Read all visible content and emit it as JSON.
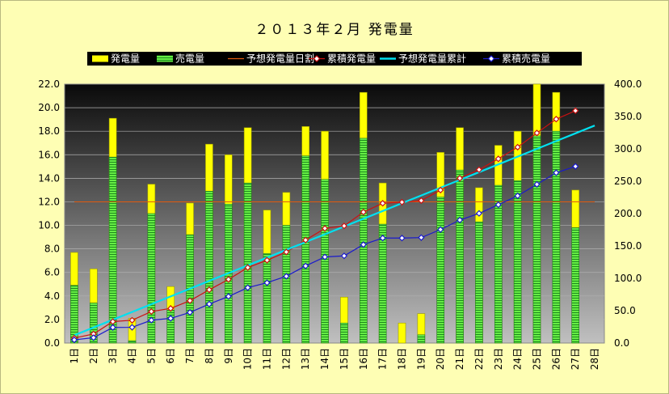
{
  "chart_data": {
    "type": "bar",
    "title": "２０１３年２月 発電量",
    "categories": [
      "1日",
      "2日",
      "3日",
      "4日",
      "5日",
      "6日",
      "7日",
      "8日",
      "9日",
      "10日",
      "11日",
      "12日",
      "13日",
      "14日",
      "15日",
      "16日",
      "17日",
      "18日",
      "19日",
      "20日",
      "21日",
      "22日",
      "23日",
      "24日",
      "25日",
      "26日",
      "27日",
      "28日"
    ],
    "series": [
      {
        "name": "発電量",
        "axis": "left",
        "type": "bar",
        "color": "#ffff00",
        "values": [
          7.7,
          6.3,
          19.1,
          2.1,
          13.5,
          4.8,
          11.9,
          16.9,
          16.0,
          18.3,
          11.3,
          12.8,
          18.4,
          18.0,
          3.9,
          21.3,
          13.6,
          1.7,
          2.5,
          16.2,
          18.3,
          13.2,
          16.8,
          18.0,
          22.0,
          21.3,
          13.0,
          null
        ]
      },
      {
        "name": "売電量",
        "axis": "left",
        "type": "bar",
        "color": "#66ee44",
        "values": [
          4.9,
          3.4,
          15.8,
          0.2,
          11.0,
          2.8,
          9.2,
          12.9,
          11.8,
          13.6,
          7.6,
          10.0,
          15.9,
          13.9,
          1.7,
          17.4,
          10.1,
          0,
          0.7,
          12.4,
          14.7,
          10.3,
          13.4,
          13.8,
          17.6,
          18.0,
          9.8,
          null
        ]
      },
      {
        "name": "予想発電量日割",
        "axis": "left",
        "type": "line",
        "color": "#e05a10",
        "values": [
          12.0,
          12.0,
          12.0,
          12.0,
          12.0,
          12.0,
          12.0,
          12.0,
          12.0,
          12.0,
          12.0,
          12.0,
          12.0,
          12.0,
          12.0,
          12.0,
          12.0,
          12.0,
          12.0,
          12.0,
          12.0,
          12.0,
          12.0,
          12.0,
          12.0,
          12.0,
          12.0,
          12.0
        ]
      },
      {
        "name": "累積発電量",
        "axis": "right",
        "type": "line",
        "color": "#cc1111",
        "marker": "diamond",
        "values": [
          7.7,
          14.0,
          33.1,
          35.2,
          48.7,
          53.5,
          65.4,
          82.3,
          98.3,
          116.6,
          127.9,
          140.7,
          159.1,
          177.1,
          181.0,
          202.3,
          215.9,
          217.6,
          220.1,
          236.3,
          254.6,
          267.8,
          284.6,
          302.6,
          324.6,
          345.9,
          358.9,
          null
        ]
      },
      {
        "name": "予想発電量累計",
        "axis": "right",
        "type": "line",
        "color": "#00e0f0",
        "values": [
          12,
          24,
          36,
          48,
          60,
          72,
          84,
          96,
          108,
          120,
          132,
          144,
          156,
          168,
          180,
          192,
          204,
          216,
          228,
          240,
          252,
          264,
          276,
          288,
          300,
          312,
          324,
          336
        ]
      },
      {
        "name": "累積売電量",
        "axis": "right",
        "type": "line",
        "color": "#1a1acc",
        "marker": "diamond",
        "values": [
          4.9,
          8.3,
          24.1,
          24.3,
          35.3,
          38.1,
          47.3,
          60.2,
          72.0,
          85.6,
          93.2,
          103.2,
          119.1,
          133.0,
          134.7,
          152.1,
          162.2,
          162.2,
          162.9,
          175.3,
          190.0,
          200.3,
          213.7,
          227.5,
          245.1,
          263.1,
          272.9,
          null
        ]
      }
    ],
    "y_left": {
      "min": 0,
      "max": 22,
      "step": 2,
      "decimals": 1
    },
    "y_right": {
      "min": 0,
      "max": 400,
      "step": 50,
      "decimals": 1
    },
    "legend_position": "top-center",
    "grid": true
  }
}
